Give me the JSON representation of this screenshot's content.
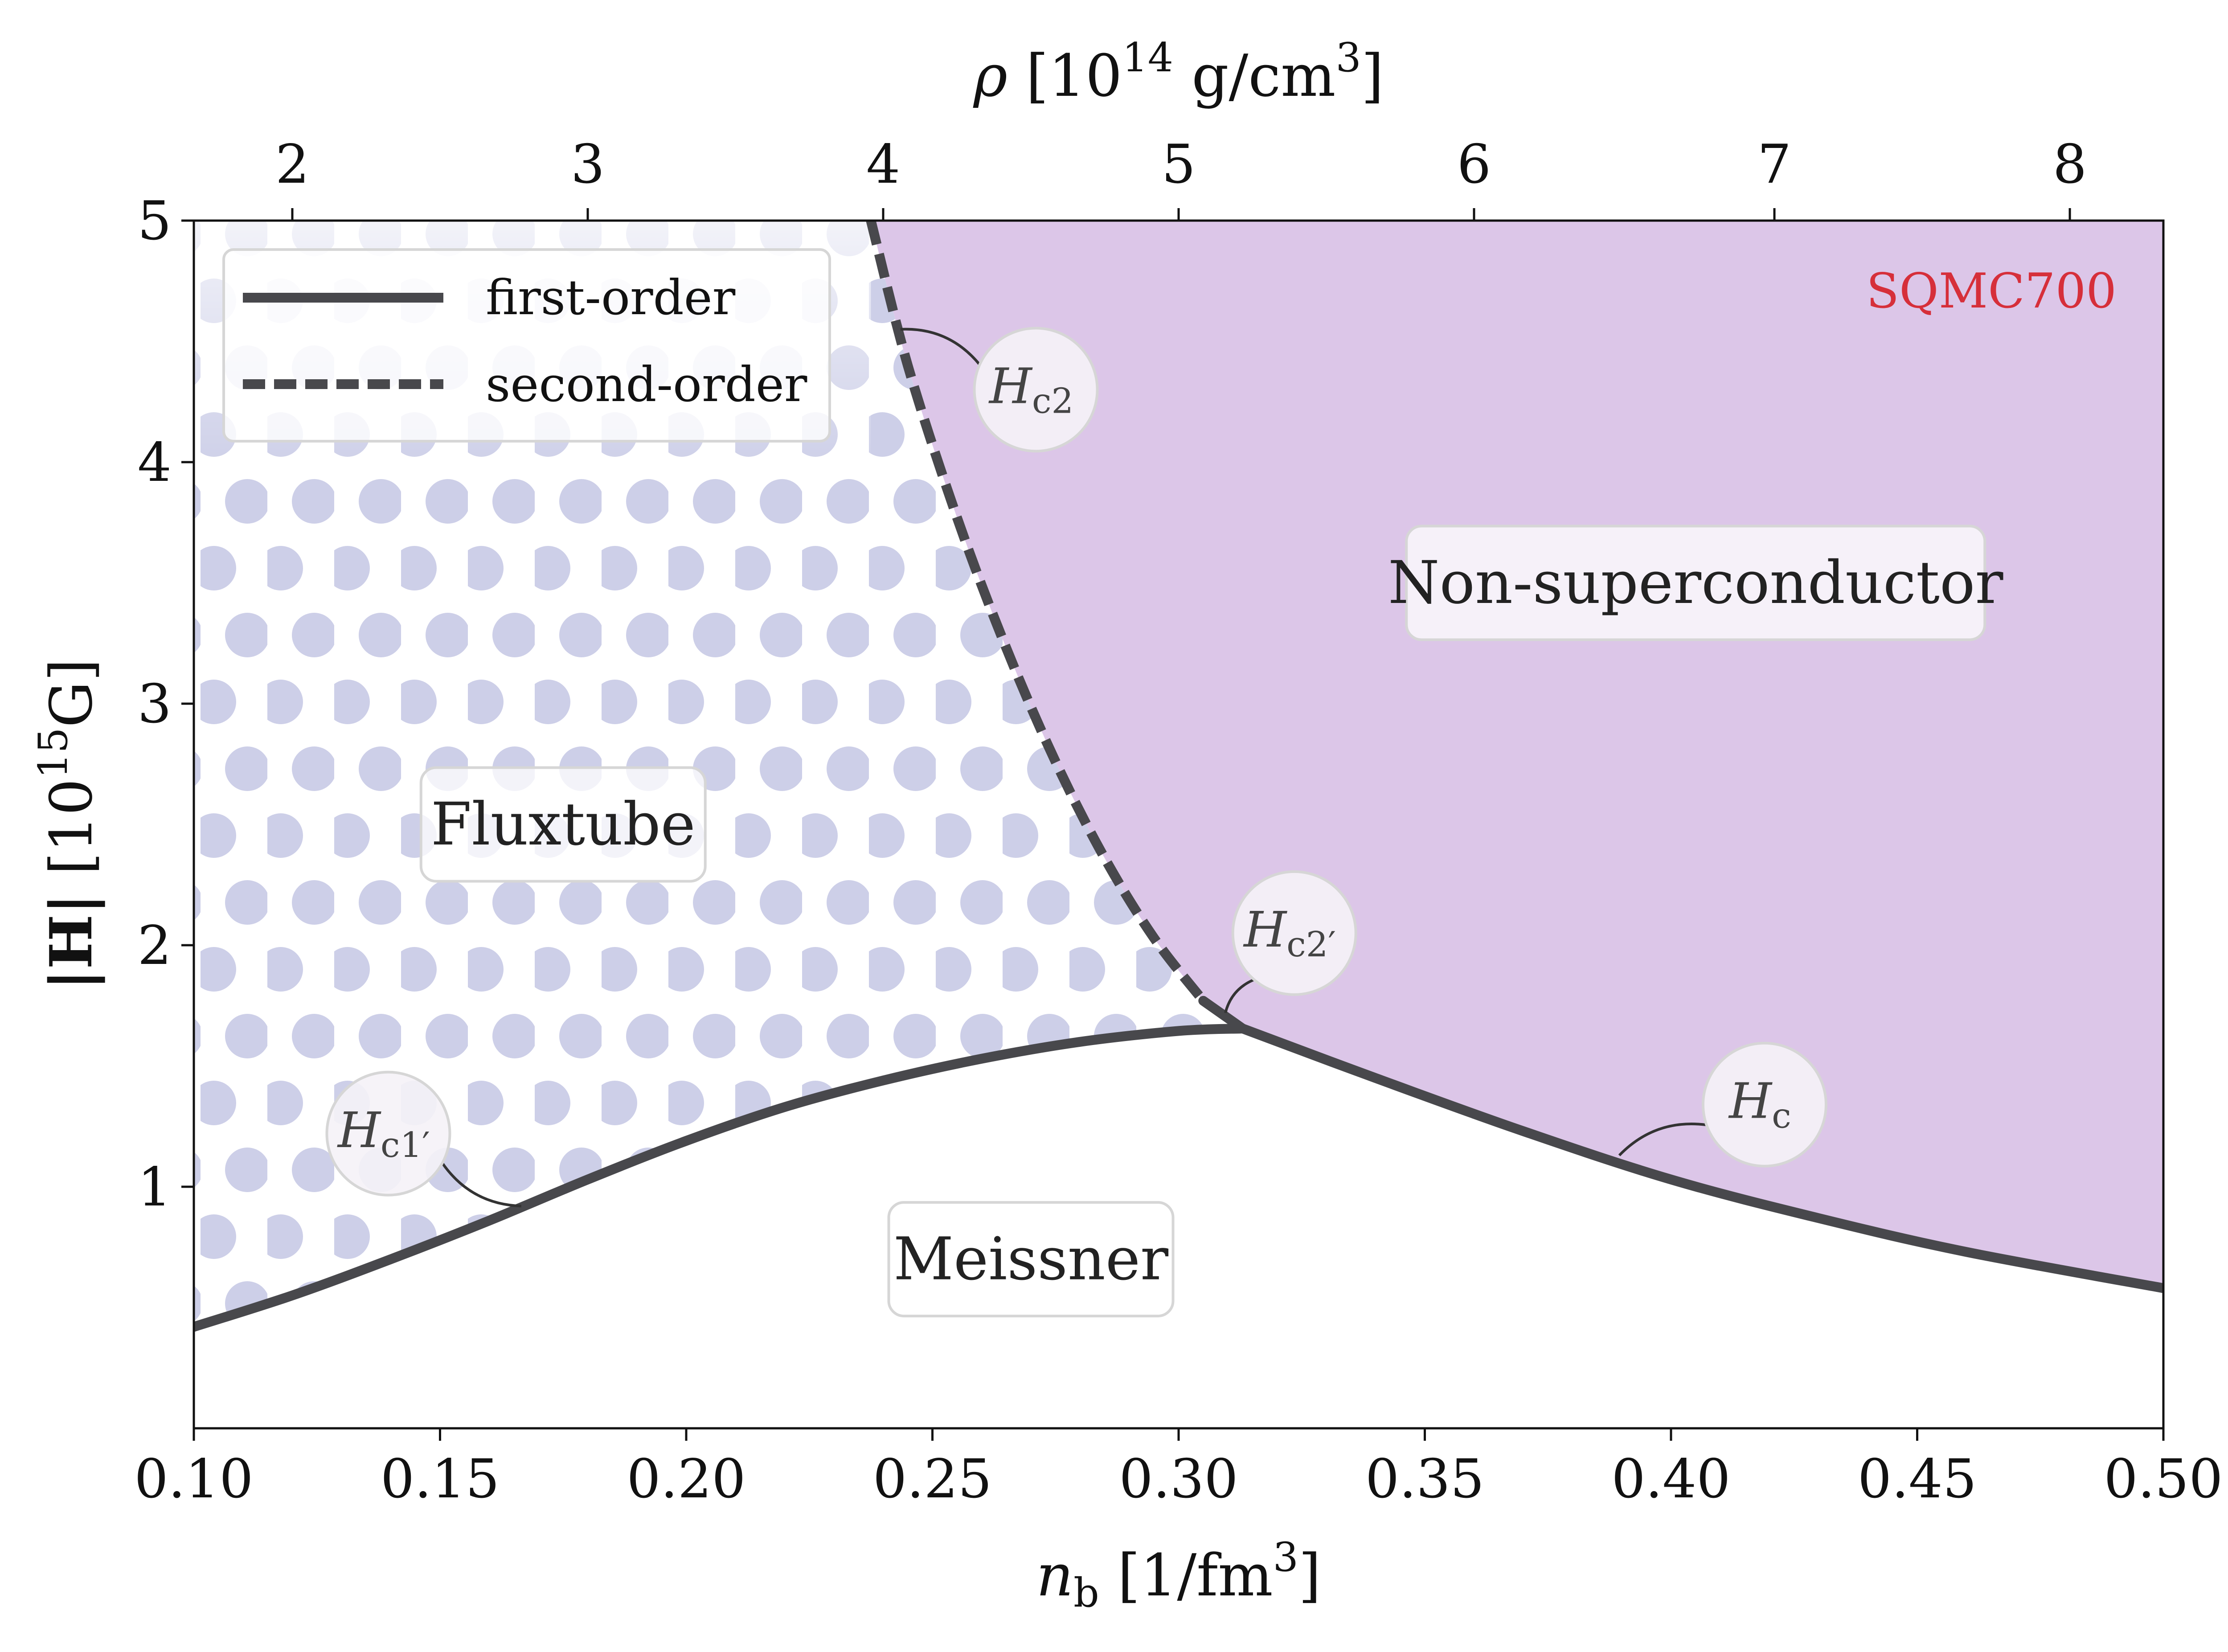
{
  "chart_data": {
    "type": "line",
    "model_label": "SQMC700",
    "colors": {
      "model_label": "#d62f3a",
      "non_superconductor_fill": "#dcc6e8",
      "fluxtube_dots": "#cdcfe8",
      "curve": "#48484c",
      "label_box_fill": "#f5f2f7",
      "label_box_edge": "#d6d6d6"
    },
    "xlabel": "n_b [1/fm^3]",
    "xlabel_parts": {
      "symbol": "n",
      "sub": "b",
      "open": " [",
      "unit": "1/fm",
      "sup": "3",
      "close": "]"
    },
    "ylabel": "|H| [10^15 G]",
    "ylabel_parts": {
      "symbol": "|H|",
      "open": " [",
      "base": "10",
      "sup": "15",
      "unit": "G",
      "close": "]"
    },
    "top_xlabel": "ρ [10^14 g/cm^3]",
    "top_xlabel_parts": {
      "symbol": "ρ",
      "open": " [",
      "base": "10",
      "sup1": "14",
      "mid": " g/cm",
      "sup2": "3",
      "close": "]"
    },
    "xlim": [
      0.1,
      0.5
    ],
    "ylim": [
      0.0,
      5.0
    ],
    "xticks": [
      0.1,
      0.15,
      0.2,
      0.25,
      0.3,
      0.35,
      0.4,
      0.45,
      0.5
    ],
    "xtick_labels": [
      "0.10",
      "0.15",
      "0.20",
      "0.25",
      "0.30",
      "0.35",
      "0.40",
      "0.45",
      "0.50"
    ],
    "yticks": [
      1,
      2,
      3,
      4,
      5
    ],
    "ytick_labels": [
      "1",
      "2",
      "3",
      "4",
      "5"
    ],
    "top_axis": {
      "ticks_at_nb": [
        0.12,
        0.18,
        0.24,
        0.3,
        0.36,
        0.421,
        0.481
      ],
      "tick_labels": [
        "2",
        "3",
        "4",
        "5",
        "6",
        "7",
        "8"
      ]
    },
    "grid": false,
    "legend": {
      "placement": "top-left",
      "entries": [
        {
          "label": "first-order",
          "style": "solid"
        },
        {
          "label": "second-order",
          "style": "dashed"
        }
      ]
    },
    "series": [
      {
        "role": "Hc1' (first-order, Meissner–Fluxtube boundary)",
        "style": "solid",
        "x": [
          0.1,
          0.12,
          0.14,
          0.16,
          0.18,
          0.2,
          0.22,
          0.24,
          0.26,
          0.28,
          0.3,
          0.313
        ],
        "y": [
          0.42,
          0.55,
          0.7,
          0.86,
          1.03,
          1.19,
          1.33,
          1.44,
          1.53,
          1.6,
          1.645,
          1.655
        ]
      },
      {
        "role": "Hc2 (second-order, Fluxtube–Non-superconductor boundary)",
        "style": "dashed",
        "x": [
          0.2375,
          0.245,
          0.255,
          0.265,
          0.275,
          0.285,
          0.295,
          0.305
        ],
        "y": [
          5.0,
          4.4,
          3.77,
          3.23,
          2.76,
          2.36,
          2.03,
          1.77
        ]
      },
      {
        "role": "Hc2' (first-order, short segment near triple point)",
        "style": "solid",
        "x": [
          0.305,
          0.313
        ],
        "y": [
          1.77,
          1.655
        ]
      },
      {
        "role": "Hc (first-order, Meissner–Non-superconductor boundary)",
        "style": "solid",
        "x": [
          0.313,
          0.34,
          0.37,
          0.4,
          0.43,
          0.46,
          0.5
        ],
        "y": [
          1.655,
          1.45,
          1.23,
          1.03,
          0.87,
          0.73,
          0.58
        ]
      }
    ],
    "regions": [
      {
        "name": "Fluxtube",
        "label_at": [
          0.175,
          2.5
        ]
      },
      {
        "name": "Non-superconductor",
        "label_at": [
          0.405,
          3.5
        ]
      },
      {
        "name": "Meissner",
        "label_at": [
          0.27,
          0.7
        ]
      }
    ],
    "markers": [
      {
        "main": "H",
        "sub": "c2",
        "at": [
          0.271,
          4.3
        ],
        "points_to": [
          0.2435,
          4.55
        ]
      },
      {
        "main": "H",
        "sub": "c2′",
        "at": [
          0.3235,
          2.05
        ],
        "points_to": [
          0.3095,
          1.72
        ]
      },
      {
        "main": "H",
        "sub": "c1′",
        "at": [
          0.1395,
          1.22
        ],
        "points_to": [
          0.1665,
          0.92
        ]
      },
      {
        "main": "H",
        "sub": "c",
        "at": [
          0.419,
          1.34
        ],
        "points_to": [
          0.3895,
          1.13
        ]
      }
    ]
  }
}
